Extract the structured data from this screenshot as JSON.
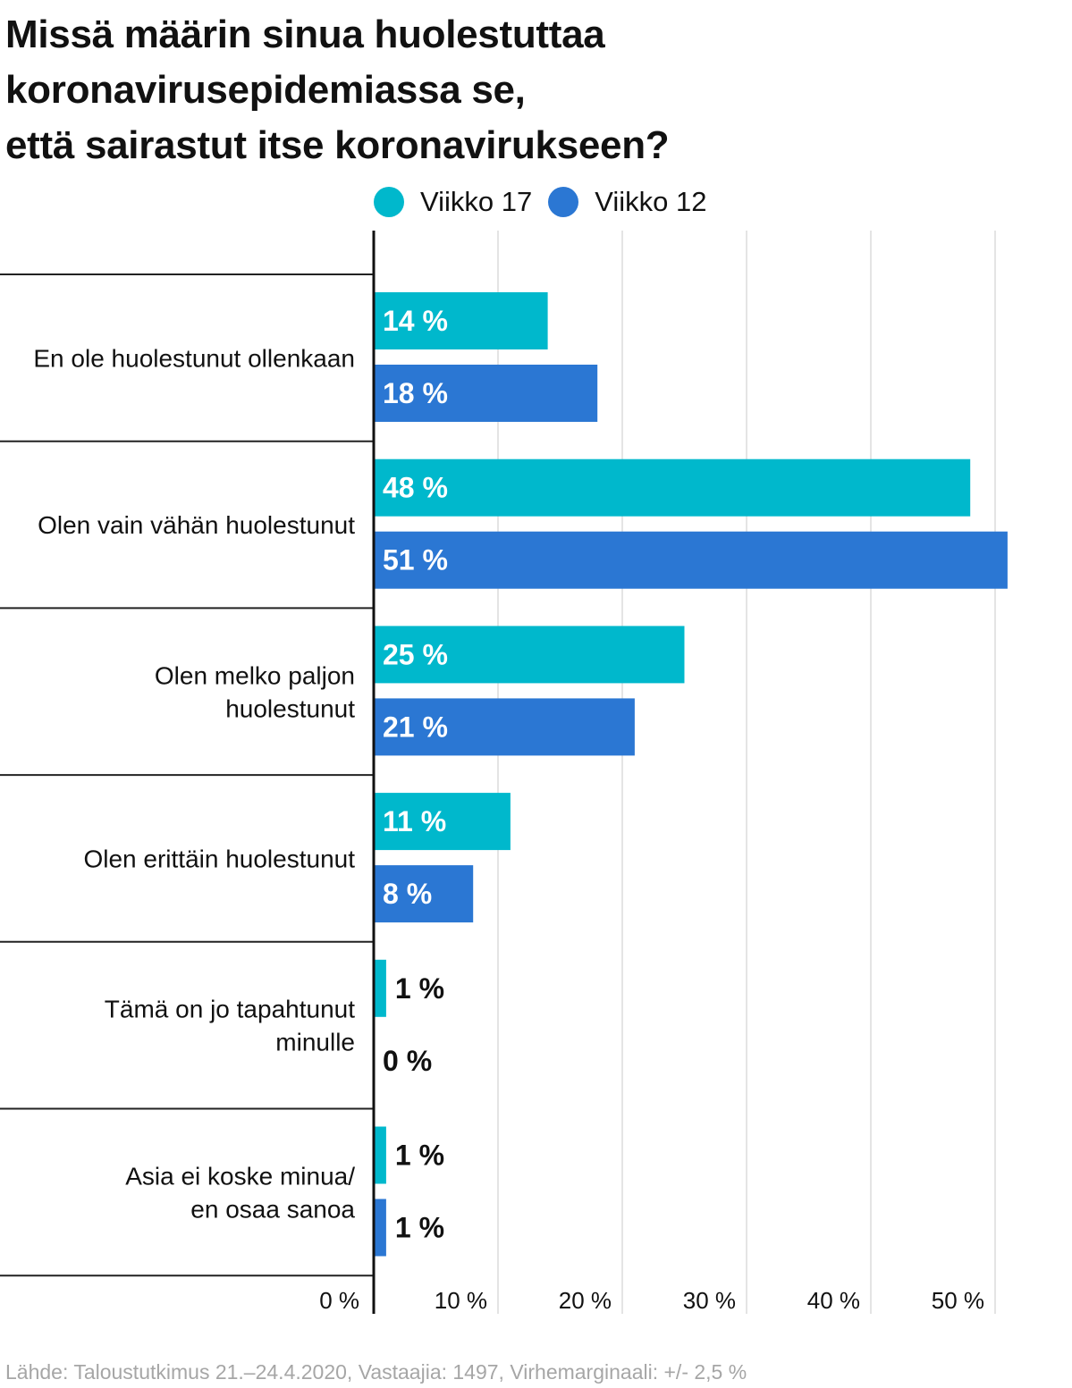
{
  "title_lines": [
    "Missä määrin sinua huolestuttaa",
    "koronavirusepidemiassa se,",
    "että sairastut itse koronavirukseen?"
  ],
  "legend": [
    {
      "label": "Viikko 17",
      "color": "#00b8cc"
    },
    {
      "label": "Viikko 12",
      "color": "#2b77d3"
    }
  ],
  "footer": "Lähde: Taloustutkimus 21.–24.4.2020, Vastaajia: 1497, Virhemarginaali: +/- 2,5 %",
  "chart_data": {
    "type": "bar",
    "orientation": "horizontal",
    "title": "Missä määrin sinua huolestuttaa koronavirusepidemiassa se, että sairastut itse koronavirukseen?",
    "categories": [
      [
        "En ole huolestunut ollenkaan"
      ],
      [
        "Olen vain vähän huolestunut"
      ],
      [
        "Olen melko paljon",
        "huolestunut"
      ],
      [
        "Olen erittäin huolestunut"
      ],
      [
        "Tämä on jo tapahtunut",
        "minulle"
      ],
      [
        "Asia ei koske minua/",
        "en osaa sanoa"
      ]
    ],
    "series": [
      {
        "name": "Viikko 17",
        "color": "#00b8cc",
        "values": [
          14,
          48,
          25,
          11,
          1,
          1
        ],
        "labels": [
          "14 %",
          "48 %",
          "25 %",
          "11 %",
          "1 %",
          "1 %"
        ]
      },
      {
        "name": "Viikko 12",
        "color": "#2b77d3",
        "values": [
          18,
          51,
          21,
          8,
          0,
          1
        ],
        "labels": [
          "18 %",
          "51 %",
          "21 %",
          "8 %",
          "0 %",
          "1 %"
        ]
      }
    ],
    "xlim": [
      0,
      52
    ],
    "xticks": [
      0,
      10,
      20,
      30,
      40,
      50
    ],
    "xtick_labels": [
      "0 %",
      "10 %",
      "20 %",
      "30 %",
      "40 %",
      "50 %"
    ],
    "grid": true,
    "legend_position": "top"
  }
}
